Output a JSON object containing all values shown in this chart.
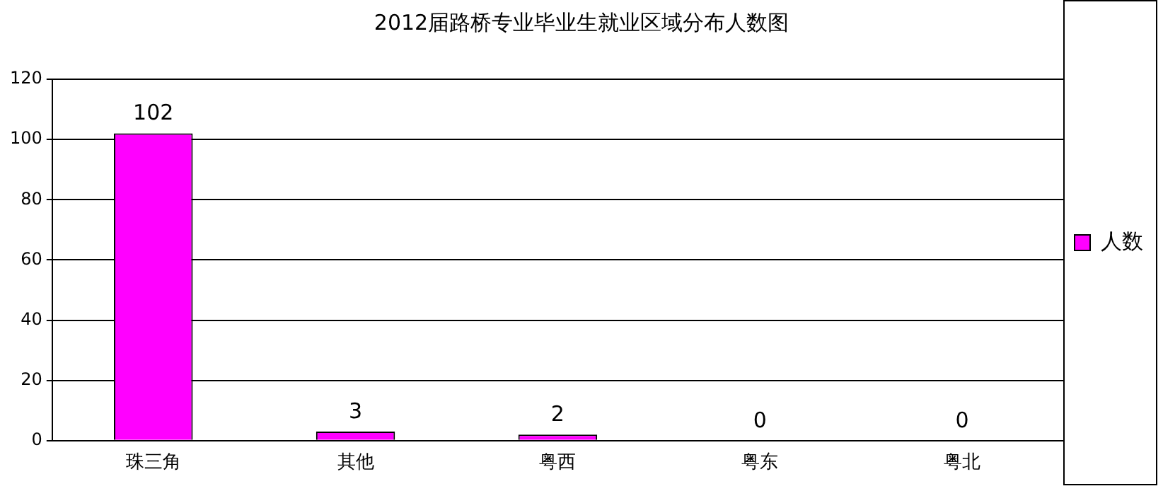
{
  "chart_data": {
    "type": "bar",
    "title": "2012届路桥专业毕业生就业区域分布人数图",
    "categories": [
      "珠三角",
      "其他",
      "粤西",
      "粤东",
      "粤北"
    ],
    "series": [
      {
        "name": "人数",
        "color": "#ff00ff",
        "values": [
          102,
          3,
          2,
          0,
          0
        ]
      }
    ],
    "ylim": [
      0,
      120
    ],
    "yticks": [
      0,
      20,
      40,
      60,
      80,
      100,
      120
    ],
    "grid": "y",
    "legend": "right",
    "data_labels": true
  }
}
